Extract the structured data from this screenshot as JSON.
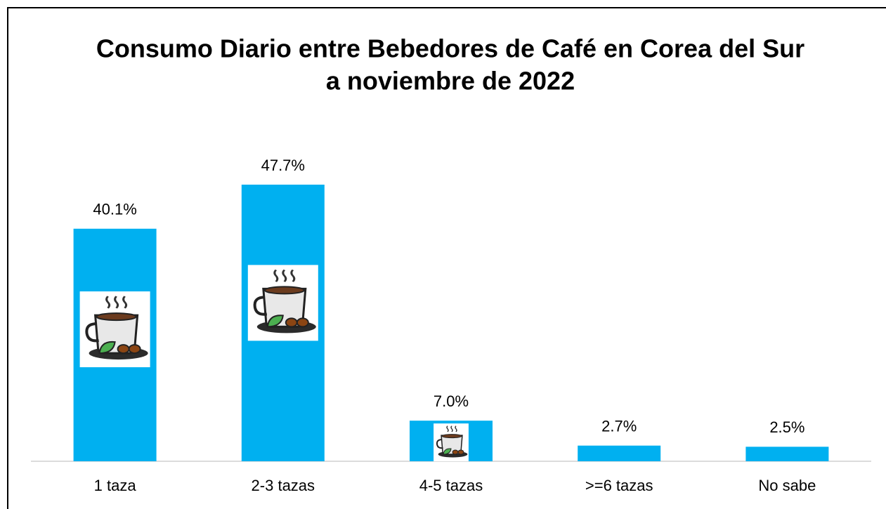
{
  "chart_data": {
    "type": "bar",
    "title": [
      "Consumo Diario entre Bebedores de Café en Corea del Sur",
      "a noviembre de 2022"
    ],
    "categories": [
      "1 taza",
      "2-3 tazas",
      "4-5 tazas",
      ">=6 tazas",
      "No sabe"
    ],
    "values": [
      40.1,
      47.7,
      7.0,
      2.7,
      2.5
    ],
    "value_labels": [
      "40.1%",
      "47.7%",
      "7.0%",
      "2.7%",
      "2.5%"
    ],
    "color": "#00b0f0"
  }
}
